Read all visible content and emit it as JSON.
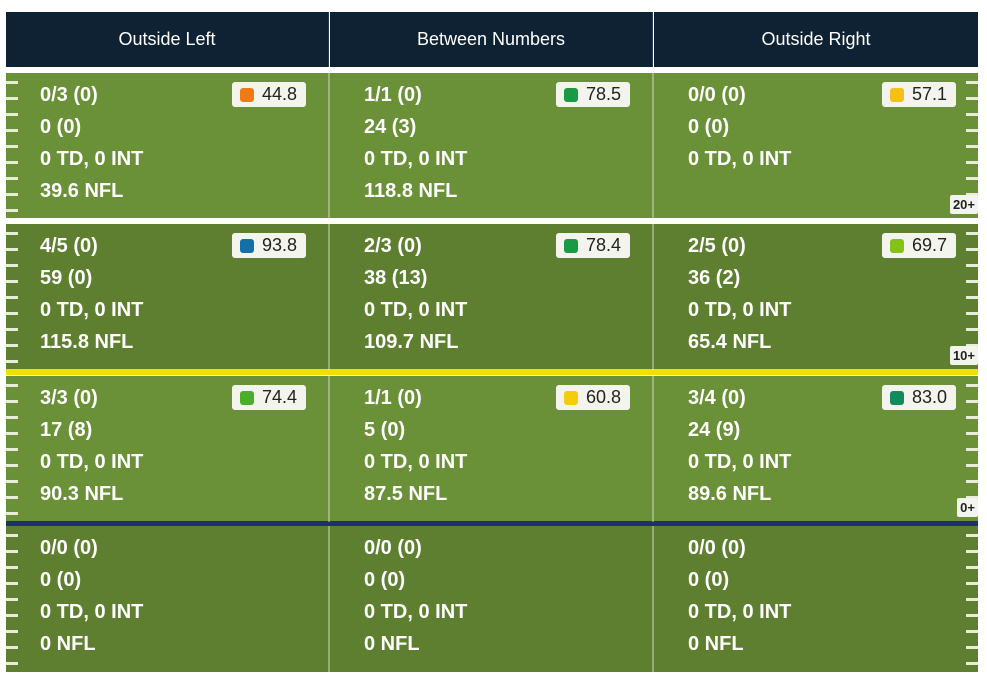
{
  "header": {
    "columns": [
      "Outside Left",
      "Between Numbers",
      "Outside Right"
    ]
  },
  "rows": [
    {
      "label": "20+",
      "cells": [
        {
          "lines": [
            "0/3 (0)",
            "0 (0)",
            "0 TD, 0 INT",
            "39.6 NFL"
          ],
          "grade": {
            "value": "44.8",
            "color": "#ee7a1a"
          }
        },
        {
          "lines": [
            "1/1 (0)",
            "24 (3)",
            "0 TD, 0 INT",
            "118.8 NFL"
          ],
          "grade": {
            "value": "78.5",
            "color": "#1a9a45"
          }
        },
        {
          "lines": [
            "0/0 (0)",
            "0 (0)",
            "0 TD, 0 INT"
          ],
          "grade": {
            "value": "57.1",
            "color": "#f5bf1a"
          }
        }
      ]
    },
    {
      "label": "10+",
      "cells": [
        {
          "lines": [
            "4/5 (0)",
            "59 (0)",
            "0 TD, 0 INT",
            "115.8 NFL"
          ],
          "grade": {
            "value": "93.8",
            "color": "#1670a8"
          }
        },
        {
          "lines": [
            "2/3 (0)",
            "38 (13)",
            "0 TD, 0 INT",
            "109.7 NFL"
          ],
          "grade": {
            "value": "78.4",
            "color": "#1a9a45"
          }
        },
        {
          "lines": [
            "2/5 (0)",
            "36 (2)",
            "0 TD, 0 INT",
            "65.4 NFL"
          ],
          "grade": {
            "value": "69.7",
            "color": "#84c21a"
          }
        }
      ]
    },
    {
      "label": "0+",
      "cells": [
        {
          "lines": [
            "3/3 (0)",
            "17 (8)",
            "0 TD, 0 INT",
            "90.3 NFL"
          ],
          "grade": {
            "value": "74.4",
            "color": "#4aae2a"
          }
        },
        {
          "lines": [
            "1/1 (0)",
            "5 (0)",
            "0 TD, 0 INT",
            "87.5 NFL"
          ],
          "grade": {
            "value": "60.8",
            "color": "#f5cc0a"
          }
        },
        {
          "lines": [
            "3/4 (0)",
            "24 (9)",
            "0 TD, 0 INT",
            "89.6 NFL"
          ],
          "grade": {
            "value": "83.0",
            "color": "#128a5e"
          }
        }
      ]
    },
    {
      "cells": [
        {
          "lines": [
            "0/0 (0)",
            "0 (0)",
            "0 TD, 0 INT",
            "0 NFL"
          ]
        },
        {
          "lines": [
            "0/0 (0)",
            "0 (0)",
            "0 TD, 0 INT",
            "0 NFL"
          ]
        },
        {
          "lines": [
            "0/0 (0)",
            "0 (0)",
            "0 TD, 0 INT",
            "0 NFL"
          ]
        }
      ]
    }
  ]
}
